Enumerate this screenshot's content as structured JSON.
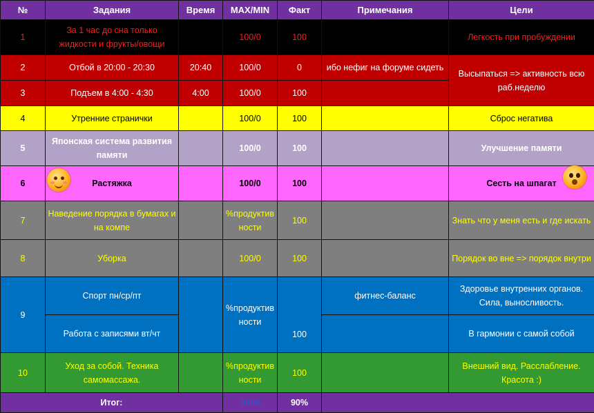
{
  "headers": {
    "num": "№",
    "task": "Задания",
    "time": "Время",
    "maxmin": "MAX/MIN",
    "fact": "Факт",
    "notes": "Примечания",
    "goals": "Цели"
  },
  "rows": [
    {
      "num": "1",
      "task": "За 1 час до сна только жидкости и фрукты/овощи",
      "time": "",
      "maxmin": "100/0",
      "fact": "100",
      "notes": "",
      "goal": "Легкость при пробуждении"
    },
    {
      "num": "2",
      "task": "Отбой в 20:00 - 20:30",
      "time": "20:40",
      "maxmin": "100/0",
      "fact": "0",
      "notes": "ибо нефиг на форуме сидеть",
      "goal": "Высыпаться => активность всю раб.неделю"
    },
    {
      "num": "3",
      "task": "Подъем в 4:00 - 4:30",
      "time": "4:00",
      "maxmin": "100/0",
      "fact": "100",
      "notes": "",
      "goal": ""
    },
    {
      "num": "4",
      "task": "Утренние странички",
      "time": "",
      "maxmin": "100/0",
      "fact": "100",
      "notes": "",
      "goal": "Сброс негатива"
    },
    {
      "num": "5",
      "task": "Японская система развития памяти",
      "time": "",
      "maxmin": "100/0",
      "fact": "100",
      "notes": "",
      "goal": "Улучшение памяти"
    },
    {
      "num": "6",
      "task": "Растяжка",
      "time": "",
      "maxmin": "100/0",
      "fact": "100",
      "notes": "",
      "goal": "Сесть на шпагат"
    },
    {
      "num": "7",
      "task": "Наведение порядка в бумагах и на компе",
      "time": "",
      "maxmin": "%продуктивности",
      "fact": "100",
      "notes": "",
      "goal": "Знать что у меня есть и где искать"
    },
    {
      "num": "8",
      "task": "Уборка",
      "time": "",
      "maxmin": "100/0",
      "fact": "100",
      "notes": "",
      "goal": "Порядок во вне => порядок внутри"
    },
    {
      "num": "9",
      "task": "Спорт пн/ср/пт",
      "task2": "Работа с записями вт/чт",
      "time": "",
      "maxmin": "%продуктивности",
      "fact": "100",
      "notes": "фитнес-баланс",
      "goal": "Здоровье внутренних органов. Сила, выносливость.",
      "goal2": "В гармонии с самой собой"
    },
    {
      "num": "10",
      "task": "Уход за собой. Техника самомассажа.",
      "time": "",
      "maxmin": "%продуктивности",
      "fact": "100",
      "notes": "",
      "goal": "Внешний вид. Расслабление. Красота :)"
    }
  ],
  "total": {
    "label": "Итог:",
    "max": "100%",
    "fact": "90%"
  },
  "icons": {
    "left": "smiley-blush-icon",
    "right": "smiley-surprised-icon"
  },
  "colors": {
    "header": "#7030A0",
    "row1": "#000000",
    "rows23": "#C00000",
    "row4": "#FFFF00",
    "row5": "#B3A2C7",
    "row6": "#FF66FF",
    "rows78": "#7F7F7F",
    "row9": "#0070C0",
    "row10": "#339933"
  }
}
